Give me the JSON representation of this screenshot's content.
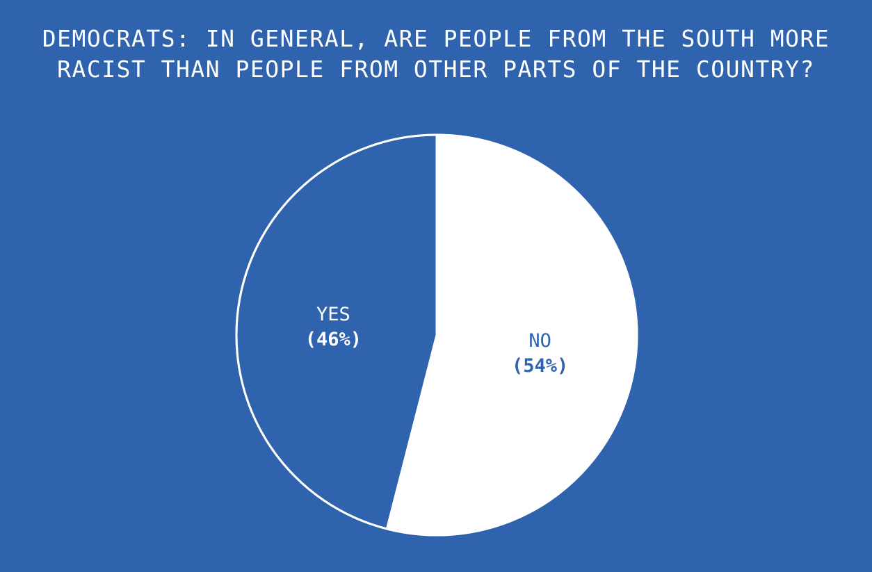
{
  "chart_data": {
    "type": "pie",
    "title": "DEMOCRATS: IN GENERAL, ARE PEOPLE FROM THE SOUTH MORE RACIST THAN PEOPLE FROM OTHER PARTS OF THE COUNTRY?",
    "slices": [
      {
        "label": "NO",
        "value": 54,
        "value_label": "(54%)",
        "color": "#ffffff",
        "text_color": "#2f63ae"
      },
      {
        "label": "YES",
        "value": 46,
        "value_label": "(46%)",
        "color": "#2f63ae",
        "text_color": "#ffffff"
      }
    ],
    "start": "top",
    "direction": "clockwise",
    "legend": "none",
    "background": "#2f63ae",
    "outline_color": "#ffffff"
  }
}
